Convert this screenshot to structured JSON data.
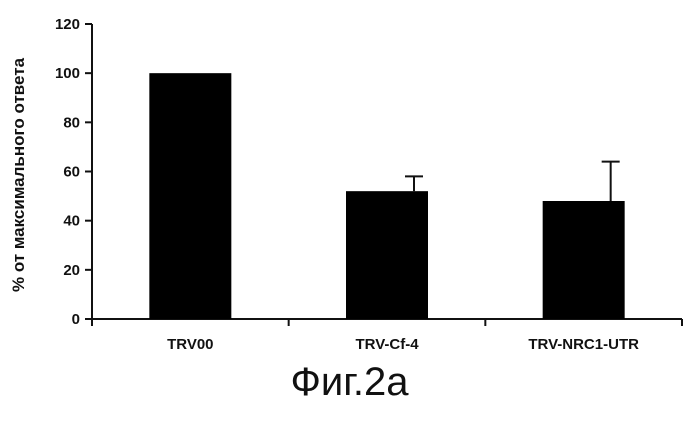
{
  "chart_data": {
    "type": "bar",
    "categories": [
      "TRV00",
      "TRV-Cf-4",
      "TRV-NRC1-UTR"
    ],
    "values": [
      100,
      52,
      48
    ],
    "error_plus": [
      0,
      6,
      16
    ],
    "ylabel": "% от максимального ответа",
    "ylim": [
      0,
      120
    ],
    "yticks": [
      0,
      20,
      40,
      60,
      80,
      100,
      120
    ],
    "grid": false,
    "bar_color": "#000000"
  },
  "figure": {
    "caption": "Фиг.2а"
  }
}
